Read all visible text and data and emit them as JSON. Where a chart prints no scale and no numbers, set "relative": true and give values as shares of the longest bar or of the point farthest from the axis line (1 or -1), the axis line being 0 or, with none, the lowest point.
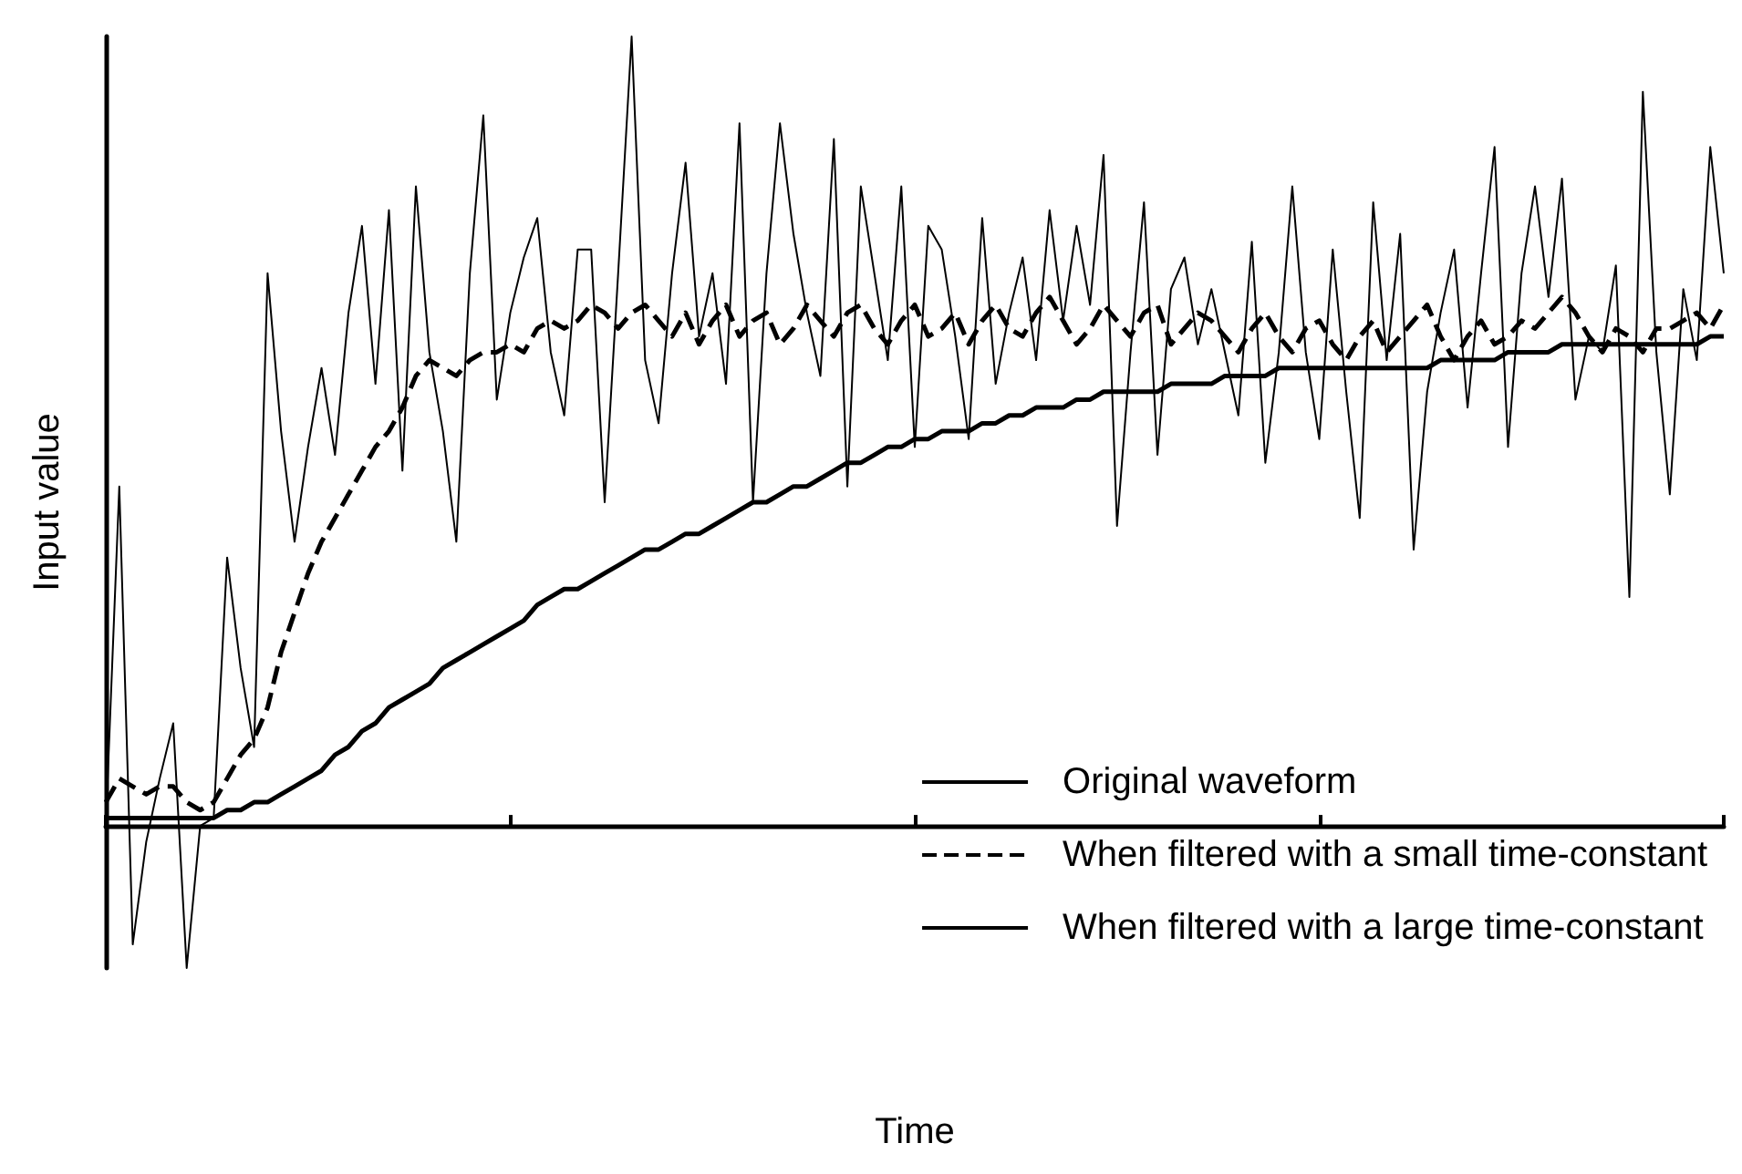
{
  "chart_data": {
    "type": "line",
    "xlabel": "Time",
    "ylabel": "Input value",
    "relative": true,
    "grid": false,
    "legend": "bottom right",
    "tick_labels": false,
    "categories": [
      null,
      null,
      null,
      null,
      null,
      null,
      null,
      null,
      null,
      null,
      null,
      null,
      null,
      null,
      null,
      null,
      null,
      null,
      null,
      null,
      null,
      null,
      null,
      null,
      null,
      null,
      null,
      null,
      null,
      null,
      null,
      null,
      null,
      null,
      null,
      null,
      null,
      null,
      null,
      null,
      null,
      null,
      null,
      null,
      null,
      null,
      null,
      null,
      null,
      null,
      null,
      null,
      null,
      null,
      null,
      null,
      null,
      null,
      null,
      null,
      null,
      null,
      null,
      null,
      null,
      null,
      null,
      null,
      null,
      null,
      null,
      null,
      null,
      null,
      null,
      null,
      null,
      null,
      null,
      null,
      null,
      null,
      null,
      null,
      null,
      null,
      null,
      null,
      null,
      null,
      null,
      null,
      null,
      null,
      null,
      null,
      null,
      null,
      null,
      null,
      null,
      null,
      null,
      null,
      null,
      null,
      null,
      null,
      null,
      null,
      null,
      null,
      null,
      null,
      null,
      null,
      null,
      null,
      null,
      null,
      null
    ],
    "series": [
      {
        "name": "Original waveform",
        "color": "#000000",
        "line_style": "solid",
        "values": [
          0.0,
          0.43,
          -0.15,
          -0.02,
          0.06,
          0.13,
          -0.18,
          0.0,
          0.01,
          0.34,
          0.2,
          0.1,
          0.7,
          0.5,
          0.36,
          0.48,
          0.58,
          0.47,
          0.65,
          0.76,
          0.56,
          0.78,
          0.45,
          0.81,
          0.6,
          0.5,
          0.36,
          0.7,
          0.9,
          0.54,
          0.65,
          0.72,
          0.77,
          0.6,
          0.52,
          0.73,
          0.73,
          0.41,
          0.7,
          1,
          0.59,
          0.51,
          0.7,
          0.84,
          0.62,
          0.7,
          0.56,
          0.89,
          0.41,
          0.7,
          0.89,
          0.75,
          0.65,
          0.57,
          0.87,
          0.43,
          0.81,
          0.7,
          0.59,
          0.81,
          0.48,
          0.76,
          0.73,
          0.62,
          0.49,
          0.77,
          0.56,
          0.65,
          0.72,
          0.59,
          0.78,
          0.64,
          0.76,
          0.66,
          0.85,
          0.38,
          0.6,
          0.79,
          0.47,
          0.68,
          0.72,
          0.61,
          0.68,
          0.6,
          0.52,
          0.74,
          0.46,
          0.6,
          0.81,
          0.6,
          0.49,
          0.73,
          0.55,
          0.39,
          0.79,
          0.59,
          0.75,
          0.35,
          0.55,
          0.65,
          0.73,
          0.53,
          0.7,
          0.86,
          0.48,
          0.7,
          0.81,
          0.67,
          0.82,
          0.54,
          0.62,
          0.6,
          0.71,
          0.29,
          0.93,
          0.6,
          0.42,
          0.68,
          0.59,
          0.86,
          0.7
        ]
      },
      {
        "name": "When filtered with a small time-constant",
        "color": "#000000",
        "line_style": "dashed",
        "values": [
          0.03,
          0.06,
          0.05,
          0.04,
          0.05,
          0.05,
          0.03,
          0.02,
          0.03,
          0.06,
          0.09,
          0.11,
          0.15,
          0.22,
          0.27,
          0.32,
          0.36,
          0.39,
          0.42,
          0.45,
          0.48,
          0.5,
          0.53,
          0.57,
          0.59,
          0.58,
          0.57,
          0.59,
          0.6,
          0.6,
          0.61,
          0.6,
          0.63,
          0.64,
          0.63,
          0.64,
          0.66,
          0.65,
          0.63,
          0.65,
          0.66,
          0.64,
          0.62,
          0.65,
          0.61,
          0.64,
          0.66,
          0.62,
          0.64,
          0.65,
          0.61,
          0.63,
          0.66,
          0.64,
          0.62,
          0.65,
          0.66,
          0.63,
          0.61,
          0.64,
          0.66,
          0.62,
          0.63,
          0.65,
          0.61,
          0.64,
          0.66,
          0.63,
          0.62,
          0.65,
          0.67,
          0.64,
          0.61,
          0.63,
          0.66,
          0.64,
          0.62,
          0.65,
          0.66,
          0.61,
          0.63,
          0.65,
          0.64,
          0.62,
          0.6,
          0.63,
          0.65,
          0.62,
          0.6,
          0.63,
          0.64,
          0.61,
          0.59,
          0.62,
          0.64,
          0.6,
          0.62,
          0.64,
          0.66,
          0.62,
          0.59,
          0.62,
          0.64,
          0.61,
          0.62,
          0.64,
          0.63,
          0.65,
          0.67,
          0.65,
          0.62,
          0.6,
          0.63,
          0.62,
          0.6,
          0.63,
          0.63,
          0.64,
          0.65,
          0.63,
          0.66
        ]
      },
      {
        "name": "When filtered with a large time-constant",
        "color": "#000000",
        "line_style": "solid",
        "values": [
          0.01,
          0.01,
          0.01,
          0.01,
          0.01,
          0.01,
          0.01,
          0.01,
          0.01,
          0.02,
          0.02,
          0.03,
          0.03,
          0.04,
          0.05,
          0.06,
          0.07,
          0.09,
          0.1,
          0.12,
          0.13,
          0.15,
          0.16,
          0.17,
          0.18,
          0.2,
          0.21,
          0.22,
          0.23,
          0.24,
          0.25,
          0.26,
          0.28,
          0.29,
          0.3,
          0.3,
          0.31,
          0.32,
          0.33,
          0.34,
          0.35,
          0.35,
          0.36,
          0.37,
          0.37,
          0.38,
          0.39,
          0.4,
          0.41,
          0.41,
          0.42,
          0.43,
          0.43,
          0.44,
          0.45,
          0.46,
          0.46,
          0.47,
          0.48,
          0.48,
          0.49,
          0.49,
          0.5,
          0.5,
          0.5,
          0.51,
          0.51,
          0.52,
          0.52,
          0.53,
          0.53,
          0.53,
          0.54,
          0.54,
          0.55,
          0.55,
          0.55,
          0.55,
          0.55,
          0.56,
          0.56,
          0.56,
          0.56,
          0.57,
          0.57,
          0.57,
          0.57,
          0.58,
          0.58,
          0.58,
          0.58,
          0.58,
          0.58,
          0.58,
          0.58,
          0.58,
          0.58,
          0.58,
          0.58,
          0.59,
          0.59,
          0.59,
          0.59,
          0.59,
          0.6,
          0.6,
          0.6,
          0.6,
          0.61,
          0.61,
          0.61,
          0.61,
          0.61,
          0.61,
          0.61,
          0.61,
          0.61,
          0.61,
          0.61,
          0.62,
          0.62
        ]
      }
    ]
  }
}
